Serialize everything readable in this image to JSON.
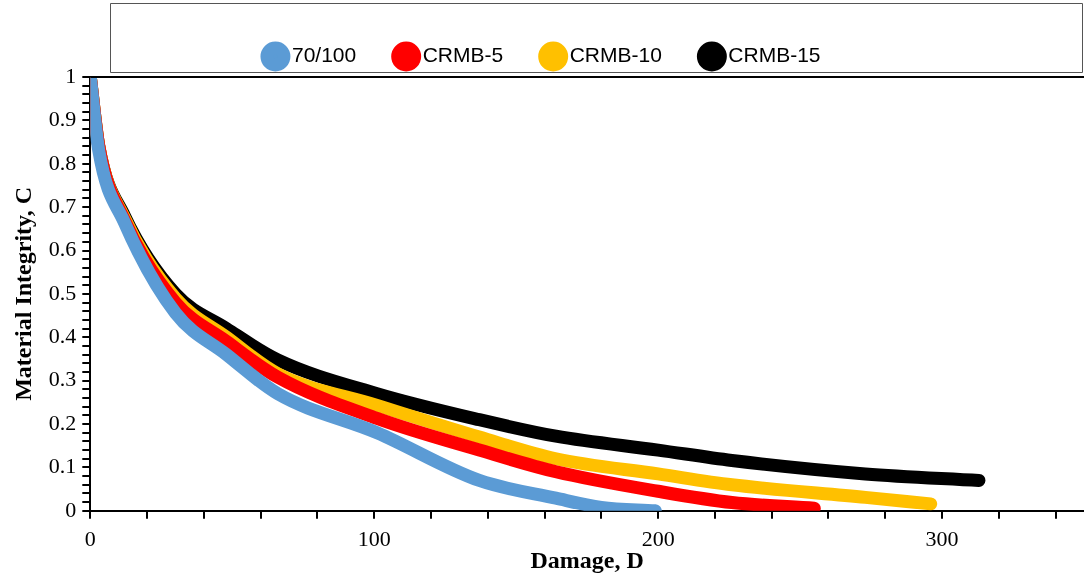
{
  "chart_data": {
    "type": "line",
    "xlabel": "Damage, D",
    "ylabel": "Material Integrity, C",
    "legend": "top",
    "grid": false,
    "xlim": [
      0,
      350
    ],
    "ylim": [
      0,
      1
    ],
    "xticks": [
      0,
      {
        "value": 20,
        "label": null
      },
      {
        "value": 40,
        "label": null
      },
      {
        "value": 60,
        "label": null
      },
      {
        "value": 80,
        "label": null
      },
      100,
      {
        "value": 120,
        "label": null
      },
      {
        "value": 140,
        "label": null
      },
      {
        "value": 160,
        "label": null
      },
      {
        "value": 180,
        "label": null
      },
      200,
      {
        "value": 220,
        "label": null
      },
      {
        "value": 240,
        "label": null
      },
      {
        "value": 260,
        "label": null
      },
      {
        "value": 280,
        "label": null
      },
      300,
      {
        "value": 320,
        "label": null
      },
      {
        "value": 340,
        "label": null
      }
    ],
    "yticks": [
      0,
      {
        "value": 0.02,
        "label": null
      },
      {
        "value": 0.04,
        "label": null
      },
      {
        "value": 0.06,
        "label": null
      },
      {
        "value": 0.08,
        "label": null
      },
      0.1,
      {
        "value": 0.12,
        "label": null
      },
      {
        "value": 0.14,
        "label": null
      },
      {
        "value": 0.16,
        "label": null
      },
      {
        "value": 0.18,
        "label": null
      },
      0.2,
      {
        "value": 0.22,
        "label": null
      },
      {
        "value": 0.24,
        "label": null
      },
      {
        "value": 0.26,
        "label": null
      },
      {
        "value": 0.28,
        "label": null
      },
      0.3,
      {
        "value": 0.32,
        "label": null
      },
      {
        "value": 0.34,
        "label": null
      },
      {
        "value": 0.36,
        "label": null
      },
      {
        "value": 0.38,
        "label": null
      },
      0.4,
      {
        "value": 0.42,
        "label": null
      },
      {
        "value": 0.44,
        "label": null
      },
      {
        "value": 0.46,
        "label": null
      },
      {
        "value": 0.48,
        "label": null
      },
      0.5,
      {
        "value": 0.52,
        "label": null
      },
      {
        "value": 0.54,
        "label": null
      },
      {
        "value": 0.56,
        "label": null
      },
      {
        "value": 0.58,
        "label": null
      },
      0.6,
      {
        "value": 0.62,
        "label": null
      },
      {
        "value": 0.64,
        "label": null
      },
      {
        "value": 0.66,
        "label": null
      },
      {
        "value": 0.68,
        "label": null
      },
      0.7,
      {
        "value": 0.72,
        "label": null
      },
      {
        "value": 0.74,
        "label": null
      },
      {
        "value": 0.76,
        "label": null
      },
      {
        "value": 0.78,
        "label": null
      },
      0.8,
      {
        "value": 0.82,
        "label": null
      },
      {
        "value": 0.84,
        "label": null
      },
      {
        "value": 0.86,
        "label": null
      },
      {
        "value": 0.88,
        "label": null
      },
      0.9,
      {
        "value": 0.92,
        "label": null
      },
      {
        "value": 0.94,
        "label": null
      },
      {
        "value": 0.96,
        "label": null
      },
      {
        "value": 0.98,
        "label": null
      },
      1
    ],
    "series": [
      {
        "name": "70/100",
        "color": "#5b9bd5",
        "x": [
          0,
          3,
          12,
          30,
          48,
          66,
          101,
          137,
          164,
          180,
          199
        ],
        "values": [
          1,
          0.83,
          0.665,
          0.456,
          0.36,
          0.27,
          0.18,
          0.07,
          0.029,
          0.008,
          0
        ]
      },
      {
        "name": "CRMB-5",
        "color": "#ff0000",
        "x": [
          0,
          3,
          12,
          30,
          48,
          66,
          101,
          137,
          164,
          200,
          226,
          255
        ],
        "values": [
          1,
          0.84,
          0.67,
          0.48,
          0.39,
          0.308,
          0.213,
          0.14,
          0.09,
          0.045,
          0.019,
          0.006
        ]
      },
      {
        "name": "CRMB-10",
        "color": "#ffc000",
        "x": [
          0,
          3,
          12,
          30,
          48,
          66,
          101,
          137,
          164,
          200,
          226,
          273,
          296
        ],
        "values": [
          1,
          0.84,
          0.675,
          0.49,
          0.4,
          0.316,
          0.243,
          0.17,
          0.12,
          0.085,
          0.06,
          0.031,
          0.016
        ]
      },
      {
        "name": "CRMB-15",
        "color": "#000000",
        "x": [
          0,
          3,
          12,
          30,
          48,
          66,
          101,
          137,
          164,
          200,
          226,
          273,
          313
        ],
        "values": [
          1,
          0.84,
          0.68,
          0.5,
          0.42,
          0.348,
          0.27,
          0.21,
          0.172,
          0.14,
          0.116,
          0.085,
          0.07
        ]
      }
    ]
  }
}
